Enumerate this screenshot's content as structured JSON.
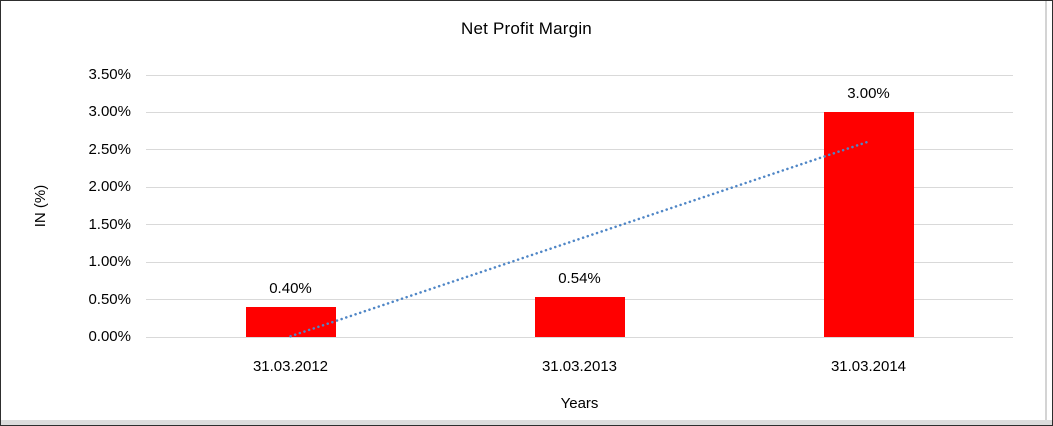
{
  "chart_data": {
    "type": "bar",
    "title": "Net Profit Margin",
    "xlabel": "Years",
    "ylabel": "IN (%)",
    "categories": [
      "31.03.2012",
      "31.03.2013",
      "31.03.2014"
    ],
    "values": [
      0.4,
      0.54,
      3.0
    ],
    "data_labels": [
      "0.40%",
      "0.54%",
      "3.00%"
    ],
    "bar_color": "#FF0000",
    "ylim": [
      0,
      3.5
    ],
    "yticks": [
      {
        "label": "3.50%",
        "value": 3.5
      },
      {
        "label": "3.00%",
        "value": 3.0
      },
      {
        "label": "2.50%",
        "value": 2.5
      },
      {
        "label": "2.00%",
        "value": 2.0
      },
      {
        "label": "1.50%",
        "value": 1.5
      },
      {
        "label": "1.00%",
        "value": 1.0
      },
      {
        "label": "0.50%",
        "value": 0.5
      },
      {
        "label": "0.00%",
        "value": 0.0
      }
    ],
    "grid": true,
    "gridline_color": "#D9D9D9",
    "legend": "none",
    "trendline": {
      "type": "linear",
      "style": "dotted",
      "color": "#4F86C6",
      "start_value": 0.01,
      "end_value": 2.61
    }
  }
}
